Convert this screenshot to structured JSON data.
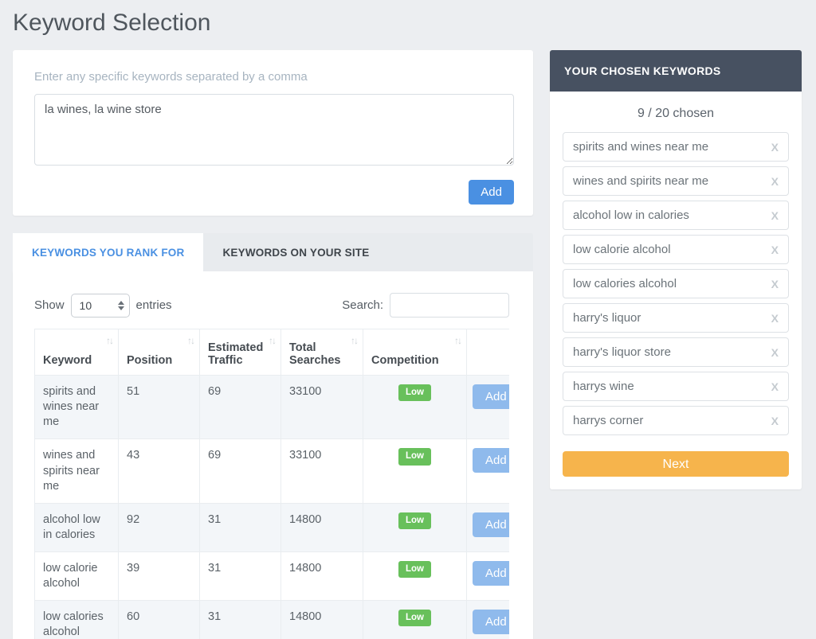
{
  "page": {
    "title": "Keyword Selection"
  },
  "add_panel": {
    "label": "Enter any specific keywords separated by a comma",
    "textarea_value": "la wines, la wine store",
    "add_button": "Add"
  },
  "tabs": [
    {
      "label": "Keywords You Rank For",
      "active": true
    },
    {
      "label": "Keywords On Your Site",
      "active": false
    }
  ],
  "table_controls": {
    "show_label": "Show",
    "entries_value": "10",
    "entries_label": "entries",
    "search_label": "Search:",
    "search_value": ""
  },
  "table": {
    "columns": [
      "Keyword",
      "Position",
      "Estimated Traffic",
      "Total Searches",
      "Competition",
      ""
    ],
    "sortable_columns": [
      true,
      true,
      true,
      true,
      true,
      false
    ],
    "rows": [
      {
        "keyword": "spirits and wines near me",
        "position": "51",
        "estimated_traffic": "69",
        "total_searches": "33100",
        "competition": "Low",
        "action": "Add"
      },
      {
        "keyword": "wines and spirits near me",
        "position": "43",
        "estimated_traffic": "69",
        "total_searches": "33100",
        "competition": "Low",
        "action": "Add"
      },
      {
        "keyword": "alcohol low in calories",
        "position": "92",
        "estimated_traffic": "31",
        "total_searches": "14800",
        "competition": "Low",
        "action": "Add"
      },
      {
        "keyword": "low calorie alcohol",
        "position": "39",
        "estimated_traffic": "31",
        "total_searches": "14800",
        "competition": "Low",
        "action": "Add"
      },
      {
        "keyword": "low calories alcohol",
        "position": "60",
        "estimated_traffic": "31",
        "total_searches": "14800",
        "competition": "Low",
        "action": "Add"
      }
    ]
  },
  "sidebar": {
    "title": "Your Chosen Keywords",
    "chosen_count": "9 / 20 chosen",
    "keywords": [
      "spirits and wines near me",
      "wines and spirits near me",
      "alcohol low in calories",
      "low calorie alcohol",
      "low calories alcohol",
      "harry's liquor",
      "harry's liquor store",
      "harrys wine",
      "harrys corner"
    ],
    "remove_label": "X",
    "next_button": "Next"
  },
  "colors": {
    "page_background": "#eceef1",
    "primary_blue": "#4a90e2",
    "row_add_blue": "#8fbaec",
    "competition_low_green": "#68c05b",
    "sidebar_header": "#475161",
    "next_orange": "#f6b44c",
    "active_tab_text": "#4a90e2"
  }
}
